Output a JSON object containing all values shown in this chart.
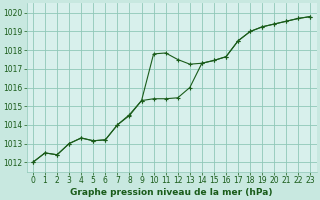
{
  "background_color": "#c8e8e0",
  "plot_bg_color": "#d8f0ec",
  "grid_color": "#90c8b8",
  "line_color": "#1a5c1a",
  "marker_color": "#1a5c1a",
  "xlabel": "Graphe pression niveau de la mer (hPa)",
  "xlim": [
    -0.5,
    23.5
  ],
  "ylim": [
    1011.5,
    1020.5
  ],
  "yticks": [
    1012,
    1013,
    1014,
    1015,
    1016,
    1017,
    1018,
    1019,
    1020
  ],
  "xticks": [
    0,
    1,
    2,
    3,
    4,
    5,
    6,
    7,
    8,
    9,
    10,
    11,
    12,
    13,
    14,
    15,
    16,
    17,
    18,
    19,
    20,
    21,
    22,
    23
  ],
  "series1_x": [
    0,
    1,
    2,
    3,
    4,
    5,
    6,
    7,
    8,
    9,
    10,
    11,
    12,
    13,
    14,
    15,
    16,
    17,
    18,
    19,
    20,
    21,
    22,
    23
  ],
  "series1_y": [
    1012.0,
    1012.5,
    1012.4,
    1013.0,
    1013.3,
    1013.15,
    1013.2,
    1014.0,
    1014.5,
    1015.3,
    1017.8,
    1017.85,
    1017.5,
    1017.25,
    1017.3,
    1017.45,
    1017.65,
    1018.5,
    1019.0,
    1019.25,
    1019.4,
    1019.55,
    1019.7,
    1019.8
  ],
  "series2_x": [
    0,
    1,
    2,
    3,
    4,
    5,
    6,
    7,
    8,
    9,
    10,
    11,
    12,
    13,
    14,
    15,
    16,
    17,
    18,
    19,
    20,
    21,
    22,
    23
  ],
  "series2_y": [
    1012.0,
    1012.5,
    1012.4,
    1013.0,
    1013.3,
    1013.15,
    1013.2,
    1014.0,
    1014.55,
    1015.3,
    1015.4,
    1015.4,
    1015.45,
    1016.0,
    1017.3,
    1017.45,
    1017.65,
    1018.5,
    1019.0,
    1019.25,
    1019.4,
    1019.55,
    1019.7,
    1019.8
  ],
  "xlabel_fontsize": 6.5,
  "tick_fontsize": 5.5
}
